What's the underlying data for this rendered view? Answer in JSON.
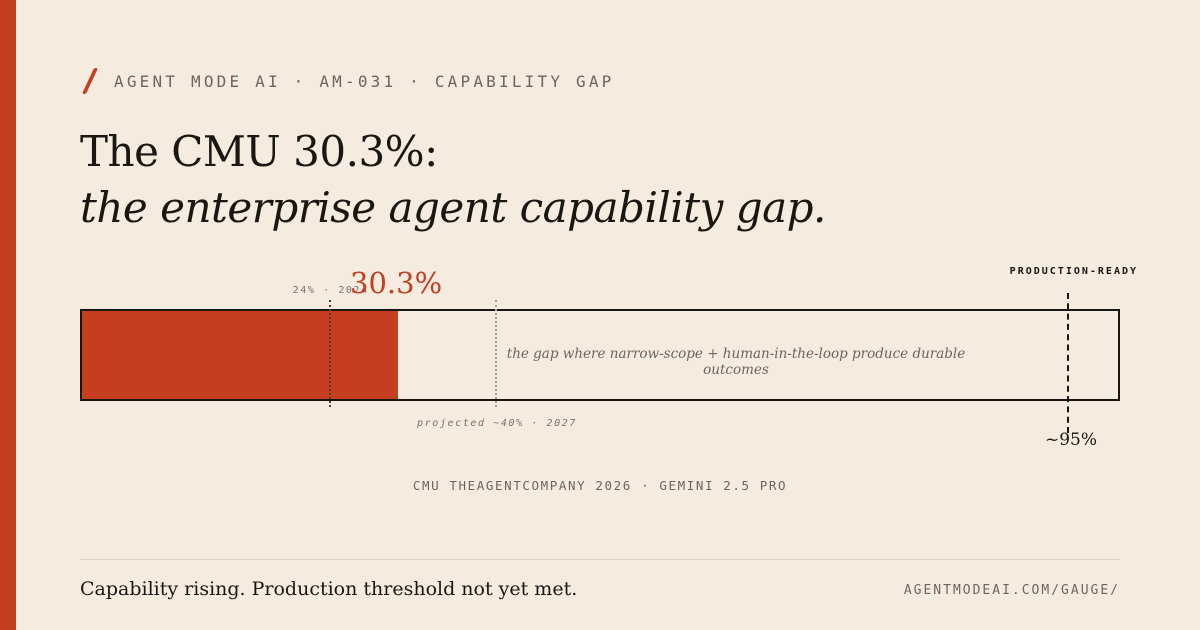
{
  "header": {
    "eyebrow": "AGENT MODE AI · AM-031 · CAPABILITY GAP"
  },
  "title": {
    "line1": "The CMU 30.3%:",
    "line2": "the enterprise agent capability gap."
  },
  "gauge": {
    "current_value_pct": 30.3,
    "current_label": "30.3%",
    "prior_value_pct": 24,
    "prior_label": "24% · 2024",
    "projected_value_pct": 40,
    "projected_label": "projected ~40% · 2027",
    "threshold_value_pct": 95,
    "threshold_title": "PRODUCTION-READY",
    "threshold_label": "~95%",
    "gap_text": "the gap where narrow-scope + human-in-the-loop produce durable outcomes",
    "fill_color": "#c43e1f"
  },
  "source": "CMU THEAGENTCOMPANY 2026 · GEMINI 2.5 PRO",
  "footer": {
    "tagline": "Capability rising. Production threshold not yet met.",
    "url": "AGENTMODEAI.COM/GAUGE/"
  },
  "colors": {
    "accent": "#c43e1f",
    "background": "#f5ebdf",
    "ink": "#1a1612"
  }
}
